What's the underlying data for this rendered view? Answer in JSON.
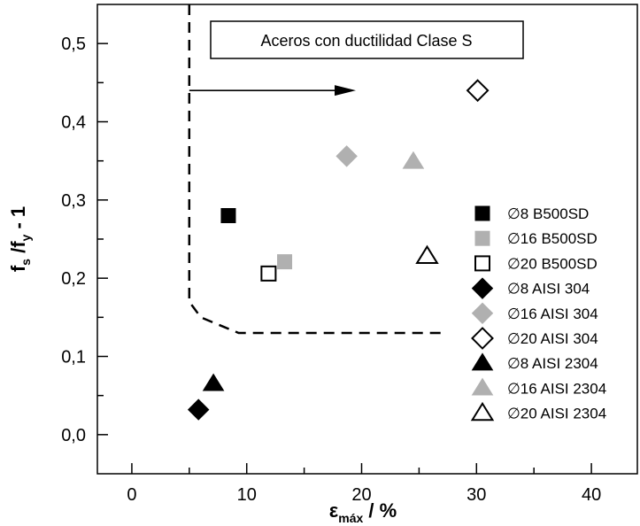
{
  "chart_data": {
    "type": "scatter",
    "title": "",
    "xlabel": {
      "main": "ε",
      "sub": "máx",
      "rest": " / %"
    },
    "ylabel": {
      "f1": "f",
      "s1": "s",
      "mid": " /f",
      "s2": "y",
      "rest": " - 1"
    },
    "xlim": [
      -3,
      44
    ],
    "ylim": [
      -0.05,
      0.55
    ],
    "xticks": [
      0,
      10,
      20,
      30,
      40
    ],
    "xtick_labels": [
      "0",
      "10",
      "20",
      "30",
      "40"
    ],
    "yticks": [
      0.0,
      0.1,
      0.2,
      0.3,
      0.4,
      0.5
    ],
    "ytick_labels": [
      "0,0",
      "0,1",
      "0,2",
      "0,3",
      "0,4",
      "0,5"
    ],
    "grid": false,
    "legend_position": "right",
    "annotation": "Aceros con ductilidad Clase S",
    "boundary": [
      [
        5,
        0.55
      ],
      [
        5,
        0.17
      ],
      [
        6,
        0.15
      ],
      [
        7.3,
        0.142
      ],
      [
        9.3,
        0.13
      ],
      [
        27,
        0.13
      ]
    ],
    "arrow": {
      "from": [
        5,
        0.44
      ],
      "to": [
        19.5,
        0.44
      ]
    },
    "series": [
      {
        "name": "∅8 B500SD",
        "marker": "square",
        "fill": "#000000",
        "stroke": "#000000",
        "points": [
          [
            8.4,
            0.28
          ]
        ]
      },
      {
        "name": "∅16 B500SD",
        "marker": "square",
        "fill": "#b0b0b0",
        "stroke": "#b0b0b0",
        "points": [
          [
            13.3,
            0.221
          ]
        ]
      },
      {
        "name": "∅20 B500SD",
        "marker": "square",
        "fill": "#ffffff",
        "stroke": "#000000",
        "points": [
          [
            11.9,
            0.206
          ]
        ]
      },
      {
        "name": "∅8 AISI 304",
        "marker": "diamond",
        "fill": "#000000",
        "stroke": "#000000",
        "points": [
          [
            5.8,
            0.032
          ]
        ]
      },
      {
        "name": "∅16 AISI 304",
        "marker": "diamond",
        "fill": "#b0b0b0",
        "stroke": "#b0b0b0",
        "points": [
          [
            18.7,
            0.356
          ]
        ]
      },
      {
        "name": "∅20 AISI 304",
        "marker": "diamond",
        "fill": "#ffffff",
        "stroke": "#000000",
        "points": [
          [
            30.1,
            0.44
          ]
        ]
      },
      {
        "name": "∅8 AISI 2304",
        "marker": "triangle",
        "fill": "#000000",
        "stroke": "#000000",
        "points": [
          [
            7.1,
            0.065
          ]
        ]
      },
      {
        "name": "∅16 AISI 2304",
        "marker": "triangle",
        "fill": "#b0b0b0",
        "stroke": "#b0b0b0",
        "points": [
          [
            24.5,
            0.349
          ]
        ]
      },
      {
        "name": "∅20 AISI 2304",
        "marker": "triangle",
        "fill": "#ffffff",
        "stroke": "#000000",
        "points": [
          [
            25.7,
            0.228
          ]
        ]
      }
    ]
  }
}
